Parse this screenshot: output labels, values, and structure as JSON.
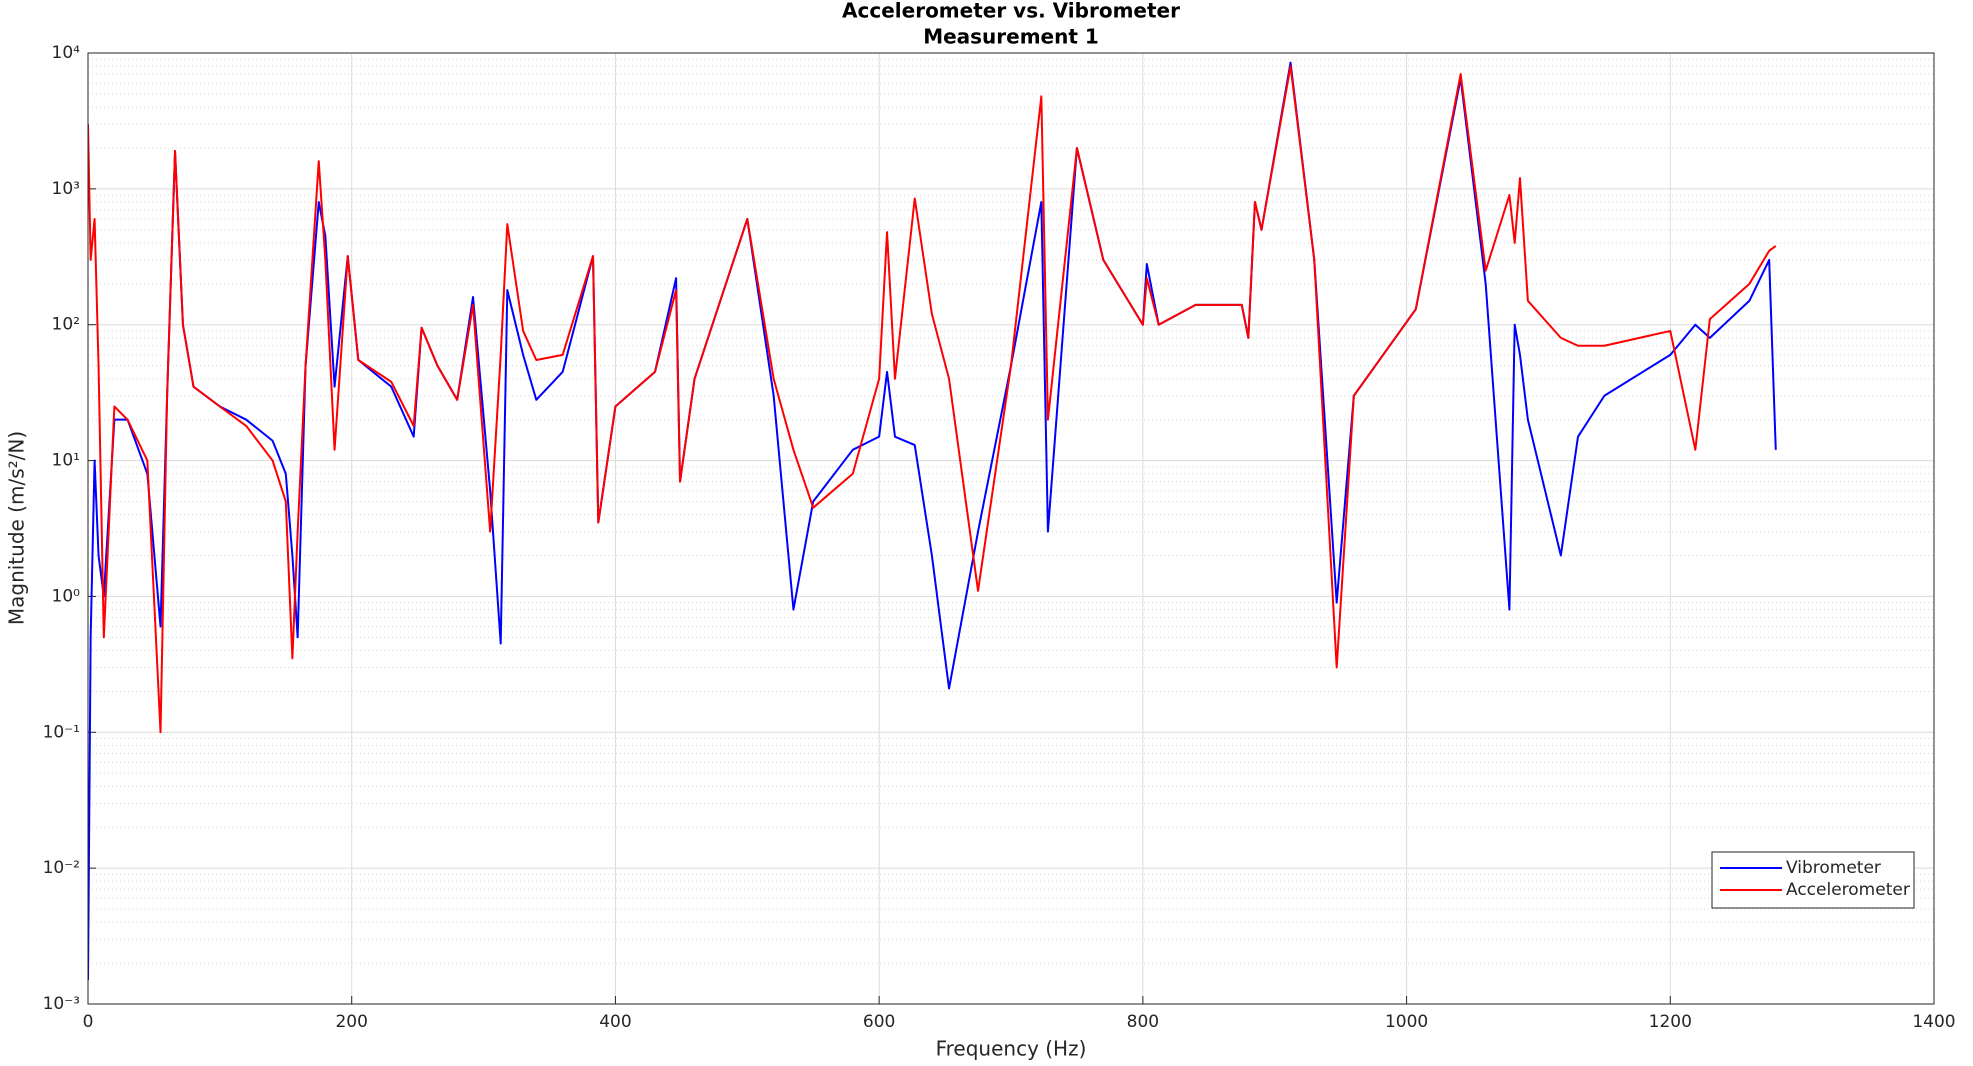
{
  "chart_data": {
    "type": "line",
    "title": "Accelerometer vs. Vibrometer",
    "subtitle": "Measurement 1",
    "x_label": "Frequency (Hz)",
    "y_label": "Magnitude (m/s²/N)",
    "x": [
      0,
      2,
      5,
      8,
      12,
      20,
      30,
      45,
      55,
      60,
      66,
      72,
      80,
      100,
      120,
      140,
      150,
      155,
      159,
      165,
      175,
      180,
      187,
      197,
      205,
      230,
      247,
      253,
      265,
      280,
      292,
      305,
      313,
      318,
      330,
      340,
      360,
      383,
      387,
      400,
      430,
      446,
      449,
      460,
      500,
      520,
      535,
      550,
      580,
      600,
      606,
      612,
      627,
      640,
      653,
      675,
      700,
      723,
      728,
      750,
      770,
      800,
      803,
      812,
      840,
      875,
      880,
      885,
      890,
      912,
      930,
      947,
      960,
      1007,
      1041,
      1060,
      1078,
      1082,
      1086,
      1092,
      1117,
      1130,
      1150,
      1200,
      1219,
      1230,
      1260,
      1275,
      1280
    ],
    "series": [
      {
        "name": "Vibrometer",
        "color": "#0000ff",
        "values": [
          0.0015,
          0.5,
          10,
          2,
          1,
          20,
          20,
          8,
          0.6,
          30,
          1900,
          100,
          35,
          25,
          20,
          14,
          8,
          2,
          0.5,
          50,
          800,
          450,
          35,
          320,
          55,
          35,
          15,
          95,
          50,
          28,
          160,
          6,
          0.45,
          180,
          60,
          28,
          45,
          320,
          3.5,
          25,
          45,
          220,
          7,
          40,
          600,
          30,
          0.8,
          5,
          12,
          15,
          45,
          15,
          13,
          2,
          0.21,
          3,
          50,
          800,
          3,
          2000,
          300,
          100,
          280,
          100,
          140,
          140,
          80,
          800,
          500,
          8500,
          300,
          0.9,
          30,
          130,
          6500,
          200,
          0.8,
          100,
          60,
          20,
          2,
          15,
          30,
          60,
          100,
          80,
          150,
          300,
          12
        ]
      },
      {
        "name": "Accelerometer",
        "color": "#ff0000",
        "values": [
          3000,
          300,
          600,
          50,
          0.5,
          25,
          20,
          10,
          0.1,
          30,
          1900,
          100,
          35,
          25,
          18,
          10,
          5,
          0.35,
          3,
          50,
          1600,
          300,
          12,
          320,
          55,
          38,
          18,
          95,
          50,
          28,
          140,
          3,
          60,
          550,
          90,
          55,
          60,
          320,
          3.5,
          25,
          45,
          180,
          7,
          40,
          600,
          40,
          12,
          4.5,
          8,
          40,
          480,
          40,
          850,
          120,
          40,
          1.1,
          50,
          4800,
          20,
          2000,
          300,
          100,
          220,
          100,
          140,
          140,
          80,
          800,
          500,
          8000,
          300,
          0.3,
          30,
          130,
          7000,
          250,
          900,
          400,
          1200,
          150,
          80,
          70,
          70,
          90,
          12,
          110,
          200,
          350,
          380
        ]
      }
    ],
    "xlim": [
      0,
      1400
    ],
    "xticks": [
      0,
      200,
      400,
      600,
      800,
      1000,
      1200,
      1400
    ],
    "ylim": [
      0.001,
      10000
    ],
    "yticks": [
      {
        "value": 0.001,
        "label": "10⁻³"
      },
      {
        "value": 0.01,
        "label": "10⁻²"
      },
      {
        "value": 0.1,
        "label": "10⁻¹"
      },
      {
        "value": 1,
        "label": "10⁰"
      },
      {
        "value": 10,
        "label": "10¹"
      },
      {
        "value": 100,
        "label": "10²"
      },
      {
        "value": 1000,
        "label": "10³"
      },
      {
        "value": 10000,
        "label": "10⁴"
      }
    ],
    "y_scale": "log",
    "grid": true,
    "legend": "lower right"
  }
}
